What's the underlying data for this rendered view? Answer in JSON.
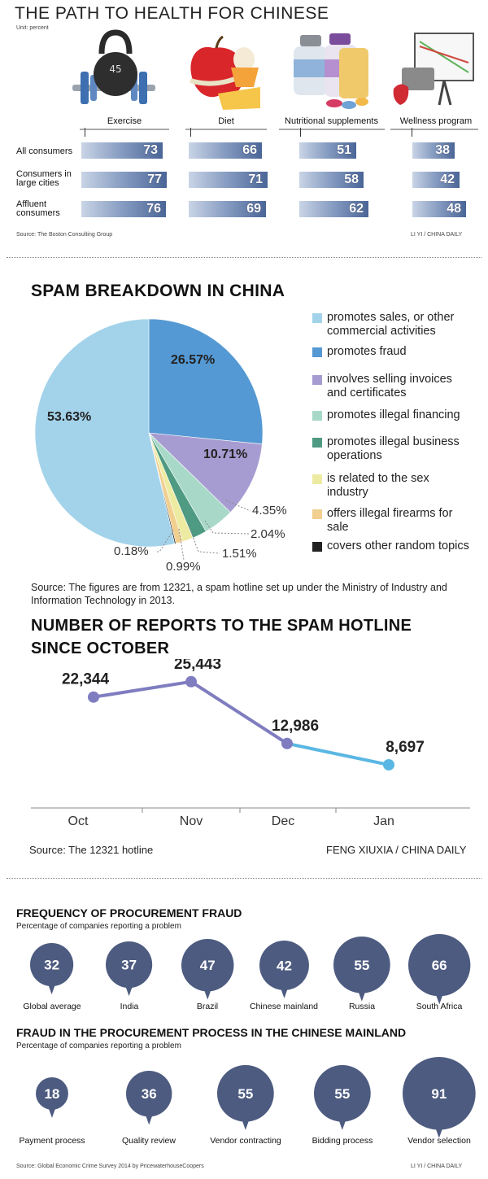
{
  "section1": {
    "title": "THE PATH TO HEALTH FOR CHINESE",
    "unit": "Unit: percent",
    "source": "Source: The Boston Consulting Group",
    "credit": "LI YI / CHINA DAILY",
    "icons": [
      "kettlebell-barbell-icon",
      "apple-cheese-egg-icon",
      "supplement-bottles-icon",
      "wellness-board-icon"
    ]
  },
  "section2": {
    "title": "SPAM BREAKDOWN IN CHINA",
    "source": "Source: The figures are from 12321, a spam hotline set up under the Ministry of Industry and Information Technology in 2013.",
    "labels_inside": [
      "53.63%",
      "26.57%",
      "10.71%"
    ],
    "labels_outside": [
      "4.35%",
      "2.04%",
      "1.51%",
      "0.99%",
      "0.18%"
    ]
  },
  "section3": {
    "title_line1": "NUMBER OF REPORTS TO THE SPAM HOTLINE",
    "title_line2": "SINCE OCTOBER",
    "source": "Source: The 12321 hotline",
    "credit": "FENG XIUXIA / CHINA DAILY",
    "value_labels": [
      "22,344",
      "25,443",
      "12,986",
      "8,697"
    ]
  },
  "section4": {
    "title": "FREQUENCY OF PROCUREMENT FRAUD",
    "subtitle": "Percentage of companies reporting a problem",
    "bubble_color": "#4d5b80"
  },
  "section5": {
    "title": "FRAUD IN THE PROCUREMENT PROCESS IN THE CHINESE MAINLAND",
    "subtitle": "Percentage of companies reporting a problem",
    "source": "Source: Global Economic Crime Survey 2014 by PricewaterhouseCoopers",
    "credit": "LI YI / CHINA DAILY"
  },
  "chart_data": [
    {
      "type": "bar",
      "categories": [
        "Exercise",
        "Diet",
        "Nutritional supplements",
        "Wellness program"
      ],
      "series": [
        {
          "name": "All consumers",
          "values": [
            73,
            66,
            51,
            38
          ]
        },
        {
          "name": "Consumers in large cities",
          "values": [
            77,
            71,
            58,
            42
          ]
        },
        {
          "name": "Affluent consumers",
          "values": [
            76,
            69,
            62,
            48
          ]
        }
      ],
      "title": "THE PATH TO HEALTH FOR CHINESE",
      "ylabel": "Unit: percent",
      "ylim": [
        0,
        100
      ]
    },
    {
      "type": "pie",
      "title": "SPAM BREAKDOWN IN CHINA",
      "categories": [
        "promotes sales, or other commercial activities",
        "promotes fraud",
        "involves selling invoices and certificates",
        "promotes illegal financing",
        "promotes illegal business operations",
        "is related to the sex industry",
        "offers illegal firearms for sale",
        "covers other random topics"
      ],
      "values": [
        53.63,
        26.57,
        10.71,
        4.35,
        2.04,
        1.51,
        0.99,
        0.18
      ],
      "colors": [
        "#a3d3ea",
        "#5499d3",
        "#a79cd1",
        "#a8d9c8",
        "#4f9a82",
        "#edeba1",
        "#f1cf8f",
        "#222222"
      ],
      "legend": "right"
    },
    {
      "type": "line",
      "title": "NUMBER OF REPORTS TO THE SPAM HOTLINE SINCE OCTOBER",
      "x": [
        "Oct",
        "Nov",
        "Dec",
        "Jan"
      ],
      "values": [
        22344,
        25443,
        12986,
        8697
      ],
      "ylim": [
        0,
        30000
      ]
    },
    {
      "type": "scatter",
      "title": "FREQUENCY OF PROCUREMENT FRAUD",
      "categories": [
        "Global average",
        "India",
        "Brazil",
        "Chinese mainland",
        "Russia",
        "South Africa"
      ],
      "values": [
        32,
        37,
        47,
        42,
        55,
        66
      ]
    },
    {
      "type": "scatter",
      "title": "FRAUD IN THE PROCUREMENT PROCESS IN THE CHINESE MAINLAND",
      "categories": [
        "Payment process",
        "Quality review",
        "Vendor contracting",
        "Bidding process",
        "Vendor selection"
      ],
      "values": [
        18,
        36,
        55,
        55,
        91
      ]
    }
  ]
}
